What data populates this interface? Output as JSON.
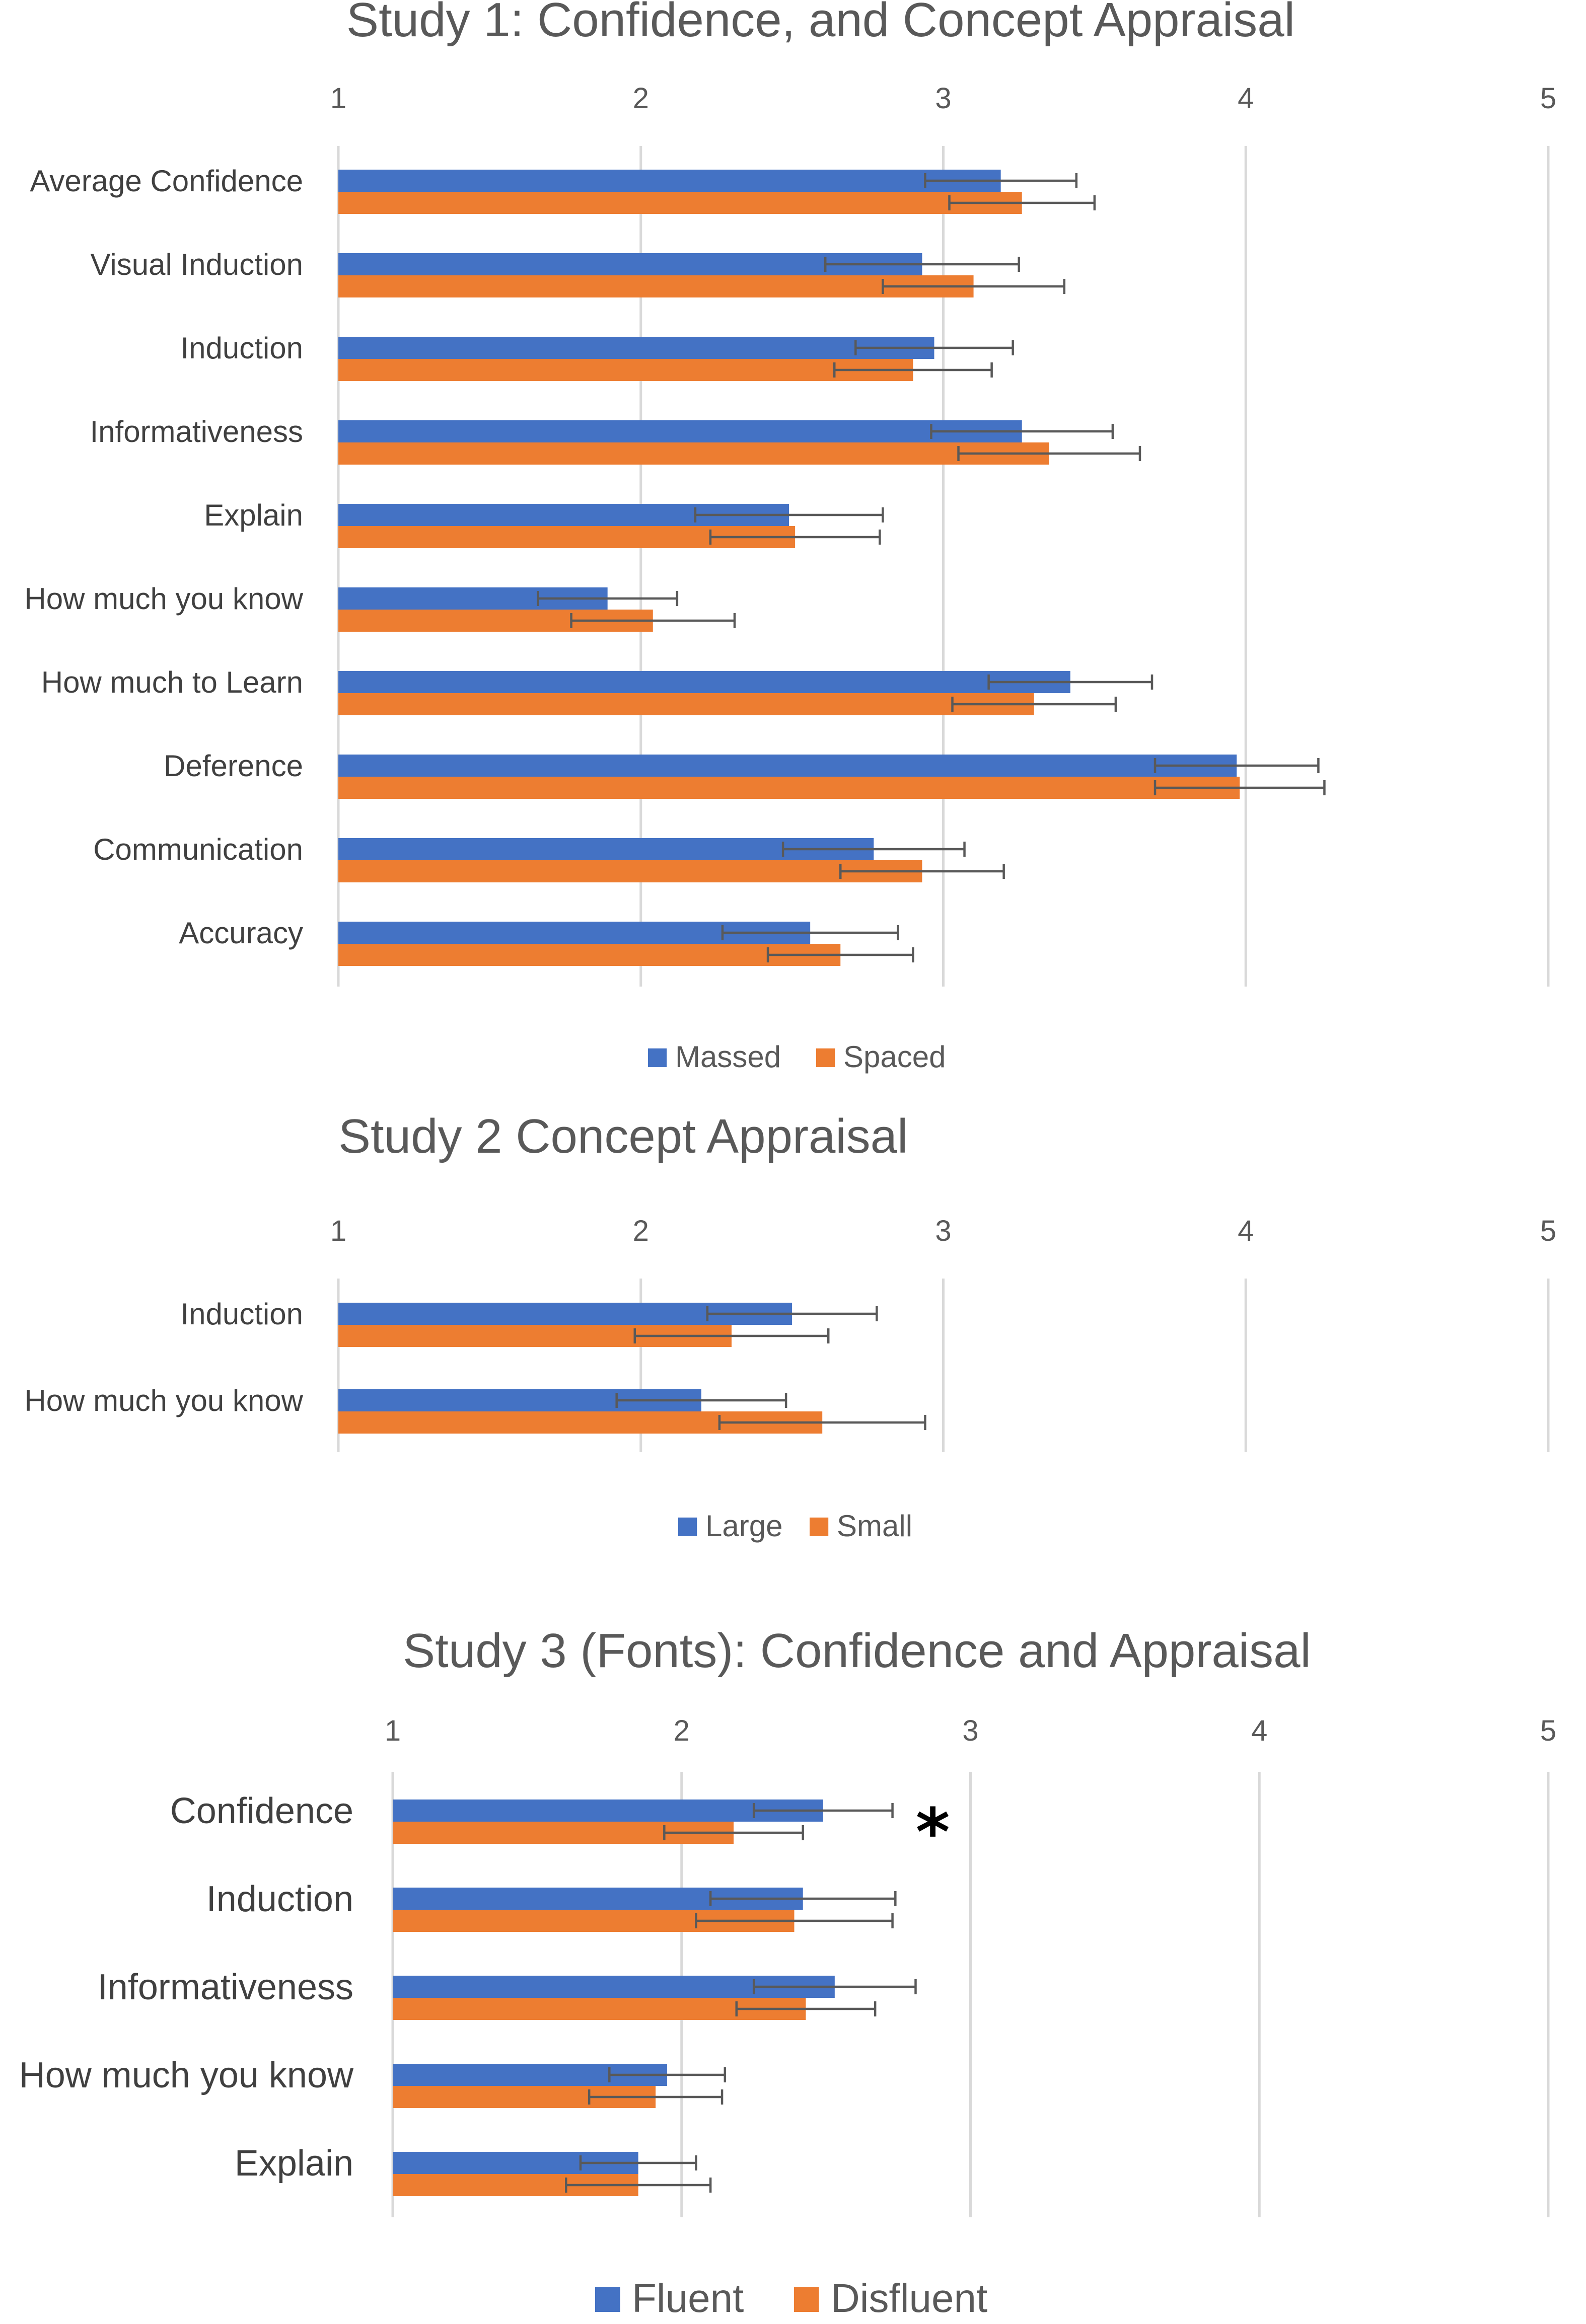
{
  "chart_data": [
    {
      "type": "bar",
      "orientation": "horizontal",
      "title": "Study 1: Confidence, and Concept Appraisal",
      "xlabel": "",
      "ylabel": "",
      "xlim": [
        1,
        5
      ],
      "ticks": [
        "1",
        "2",
        "3",
        "4",
        "5"
      ],
      "categories": [
        "Average Confidence",
        "Visual Induction",
        "Induction",
        "Informativeness",
        "Explain",
        "How much you know",
        "How much to Learn",
        "Deference",
        "Communication",
        "Accuracy"
      ],
      "series": [
        {
          "name": "Massed",
          "color": "#4472c4",
          "values": [
            3.19,
            2.93,
            2.97,
            3.26,
            2.49,
            1.89,
            3.42,
            3.97,
            2.77,
            2.56
          ],
          "errors": [
            0.25,
            0.32,
            0.26,
            0.3,
            0.31,
            0.23,
            0.27,
            0.27,
            0.3,
            0.29
          ]
        },
        {
          "name": "Spaced",
          "color": "#ed7d31",
          "values": [
            3.26,
            3.1,
            2.9,
            3.35,
            2.51,
            2.04,
            3.3,
            3.98,
            2.93,
            2.66
          ],
          "errors": [
            0.24,
            0.3,
            0.26,
            0.3,
            0.28,
            0.27,
            0.27,
            0.28,
            0.27,
            0.24
          ]
        }
      ],
      "legend_position": "bottom"
    },
    {
      "type": "bar",
      "orientation": "horizontal",
      "title": "Study 2 Concept Appraisal",
      "xlabel": "",
      "ylabel": "",
      "xlim": [
        1,
        5
      ],
      "ticks": [
        "1",
        "2",
        "3",
        "4",
        "5"
      ],
      "categories": [
        "Induction",
        "How much you know"
      ],
      "series": [
        {
          "name": "Large",
          "color": "#4472c4",
          "values": [
            2.5,
            2.2
          ],
          "errors": [
            0.28,
            0.28
          ]
        },
        {
          "name": "Small",
          "color": "#ed7d31",
          "values": [
            2.3,
            2.6
          ],
          "errors": [
            0.32,
            0.34
          ]
        }
      ],
      "legend_position": "bottom"
    },
    {
      "type": "bar",
      "orientation": "horizontal",
      "title": "Study 3 (Fonts): Confidence and Appraisal",
      "xlabel": "",
      "ylabel": "",
      "xlim": [
        1,
        5
      ],
      "ticks": [
        "1",
        "2",
        "3",
        "4",
        "5"
      ],
      "categories": [
        "Confidence",
        "Induction",
        "Informativeness",
        "How much you know",
        "Explain"
      ],
      "series": [
        {
          "name": "Fluent",
          "color": "#4472c4",
          "values": [
            2.49,
            2.42,
            2.53,
            1.95,
            1.85
          ],
          "errors": [
            0.24,
            0.32,
            0.28,
            0.2,
            0.2
          ]
        },
        {
          "name": "Disfluent",
          "color": "#ed7d31",
          "values": [
            2.18,
            2.39,
            2.43,
            1.91,
            1.85
          ],
          "errors": [
            0.24,
            0.34,
            0.24,
            0.23,
            0.25
          ]
        }
      ],
      "annotations": [
        {
          "text": "*",
          "category": "Confidence"
        }
      ],
      "legend_position": "bottom"
    }
  ]
}
